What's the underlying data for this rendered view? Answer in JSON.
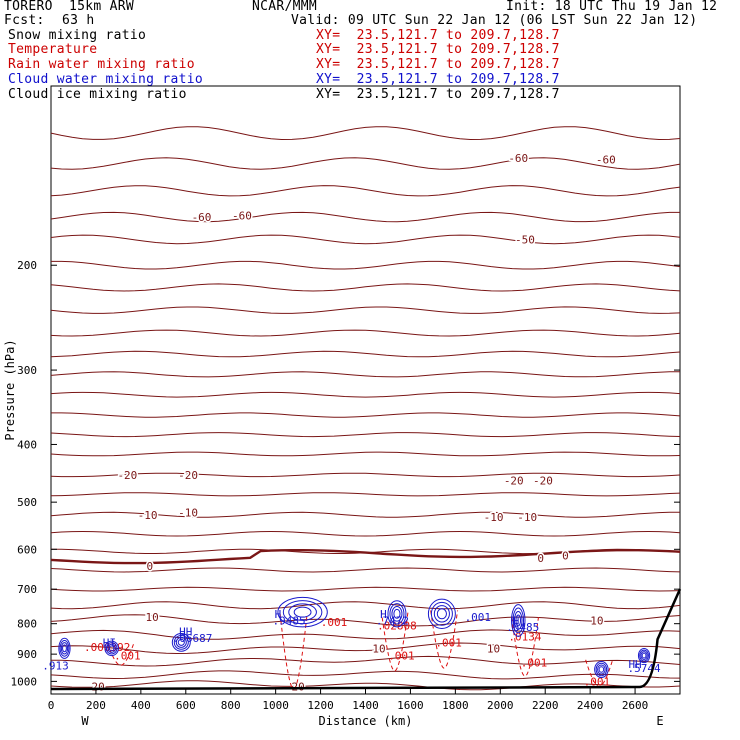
{
  "header": {
    "model": "TORERO  15km ARW",
    "center": "NCAR/MMM",
    "init": "Init: 18 UTC Thu 19 Jan 12",
    "fcst_label": "Fcst:",
    "fcst_value": "63 h",
    "valid": "Valid: 09 UTC Sun 22 Jan 12 (06 LST Sun 22 Jan 12)"
  },
  "fields": [
    {
      "name": "Snow mixing ratio",
      "xy": "XY=  23.5,121.7 to 209.7,128.7",
      "color": "#000000"
    },
    {
      "name": "Temperature",
      "xy": "XY=  23.5,121.7 to 209.7,128.7",
      "color": "#cc0000"
    },
    {
      "name": "Rain water mixing ratio",
      "xy": "XY=  23.5,121.7 to 209.7,128.7",
      "color": "#cc0000"
    },
    {
      "name": "Cloud water mixing ratio",
      "xy": "XY=  23.5,121.7 to 209.7,128.7",
      "color": "#1010cc"
    },
    {
      "name": "Cloud ice mixing ratio",
      "xy": "XY=  23.5,121.7 to 209.7,128.7",
      "color": "#000000"
    }
  ],
  "chart_data": {
    "type": "line",
    "xlabel": "Distance (km)",
    "ylabel": "Pressure (hPa)",
    "xlim": [
      0,
      2800
    ],
    "ylim": [
      1050,
      100
    ],
    "y_scale": "log",
    "x_ticks": [
      0,
      200,
      400,
      600,
      800,
      1000,
      1200,
      1400,
      1600,
      1800,
      2000,
      2200,
      2400,
      2600
    ],
    "y_ticks": [
      200,
      300,
      400,
      500,
      600,
      700,
      800,
      900,
      1000
    ],
    "x_end_labels": {
      "left": "W",
      "right": "E"
    },
    "temperature_labels": [
      {
        "text": "-60",
        "x": 670,
        "p": 166
      },
      {
        "text": "-60",
        "x": 850,
        "p": 165
      },
      {
        "text": "-60",
        "x": 2080,
        "p": 132
      },
      {
        "text": "-60",
        "x": 2470,
        "p": 133
      },
      {
        "text": "-50",
        "x": 2110,
        "p": 181
      },
      {
        "text": "-20",
        "x": 340,
        "p": 450
      },
      {
        "text": "-20",
        "x": 610,
        "p": 450
      },
      {
        "text": "-20",
        "x": 2060,
        "p": 460
      },
      {
        "text": "-20",
        "x": 2190,
        "p": 460
      },
      {
        "text": "-10",
        "x": 430,
        "p": 525
      },
      {
        "text": "-10",
        "x": 610,
        "p": 520
      },
      {
        "text": "-10",
        "x": 1970,
        "p": 530
      },
      {
        "text": "-10",
        "x": 2120,
        "p": 530
      },
      {
        "text": "0",
        "x": 440,
        "p": 640
      },
      {
        "text": "0",
        "x": 2180,
        "p": 620
      },
      {
        "text": "0",
        "x": 2290,
        "p": 615
      },
      {
        "text": "10",
        "x": 450,
        "p": 780
      },
      {
        "text": "10",
        "x": 2430,
        "p": 790
      },
      {
        "text": "10",
        "x": 1460,
        "p": 880
      },
      {
        "text": "10",
        "x": 1970,
        "p": 880
      },
      {
        "text": "20",
        "x": 210,
        "p": 1020
      },
      {
        "text": "20",
        "x": 1100,
        "p": 1020
      }
    ],
    "rain_labels": [
      {
        "text": ".001",
        "x": 1260,
        "p": 795
      },
      {
        "text": ".02808",
        "x": 1540,
        "p": 805
      },
      {
        "text": ".001",
        "x": 1560,
        "p": 905
      },
      {
        "text": ".001",
        "x": 1770,
        "p": 860
      },
      {
        "text": ".0134",
        "x": 2110,
        "p": 840
      },
      {
        "text": ".001",
        "x": 2150,
        "p": 930
      },
      {
        "text": ".001",
        "x": 2430,
        "p": 1000
      },
      {
        "text": ".001",
        "x": 340,
        "p": 905
      },
      {
        "text": ".000392",
        "x": 250,
        "p": 875
      }
    ],
    "cloud_labels": [
      {
        "text": "H",
        "x": 1010,
        "p": 770
      },
      {
        "text": ".9485",
        "x": 1060,
        "p": 790
      },
      {
        "text": "H",
        "x": 1480,
        "p": 770
      },
      {
        "text": ".7472",
        "x": 1520,
        "p": 790
      },
      {
        "text": ".001",
        "x": 1900,
        "p": 780
      },
      {
        "text": "H",
        "x": 2070,
        "p": 790
      },
      {
        "text": ".6485",
        "x": 2100,
        "p": 810
      },
      {
        "text": "HH",
        "x": 600,
        "p": 825
      },
      {
        "text": ".06687",
        "x": 630,
        "p": 845
      },
      {
        "text": "HI",
        "x": 260,
        "p": 860
      },
      {
        "text": ".913",
        "x": 20,
        "p": 940
      },
      {
        "text": "HH",
        "x": 2600,
        "p": 935
      },
      {
        "text": ".5744",
        "x": 2640,
        "p": 950
      }
    ],
    "freezing_level_hpa": 625,
    "terrain_surface_hpa": 1030
  }
}
